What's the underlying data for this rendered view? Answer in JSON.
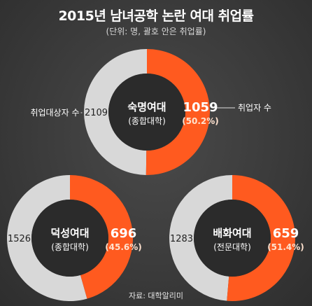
{
  "title": "2015년 남녀공학 논란 여대 취업률",
  "subtitle": "(단위: 명, 괄호 안은 취업률)",
  "source": "자료: 대학알리미",
  "colors": {
    "employed": "#ff5a1f",
    "unemployed": "#d8d8d8",
    "center": "#2b2b2b",
    "text": "#ffffff",
    "percent_text": "#ffe2cf"
  },
  "chart_data": [
    {
      "type": "pie",
      "center_title": "숙명여대",
      "center_subtitle": "(종합대학)",
      "series": [
        {
          "name": "취업자 수",
          "value": 1059,
          "value_label": "1059",
          "percent_label": "(50.2%)"
        },
        {
          "name": "취업대상자 수",
          "value": 2109,
          "value_label": "2109"
        }
      ],
      "callouts": {
        "right": "취업자 수",
        "left": "취업대상자 수"
      }
    },
    {
      "type": "pie",
      "center_title": "덕성여대",
      "center_subtitle": "(종합대학)",
      "series": [
        {
          "name": "취업자 수",
          "value": 696,
          "value_label": "696",
          "percent_label": "(45.6%)"
        },
        {
          "name": "취업대상자 수",
          "value": 1526,
          "value_label": "1526"
        }
      ]
    },
    {
      "type": "pie",
      "center_title": "배화여대",
      "center_subtitle": "(전문대학)",
      "series": [
        {
          "name": "취업자 수",
          "value": 659,
          "value_label": "659",
          "percent_label": "(51.4%)"
        },
        {
          "name": "취업대상자 수",
          "value": 1283,
          "value_label": "1283"
        }
      ]
    }
  ]
}
